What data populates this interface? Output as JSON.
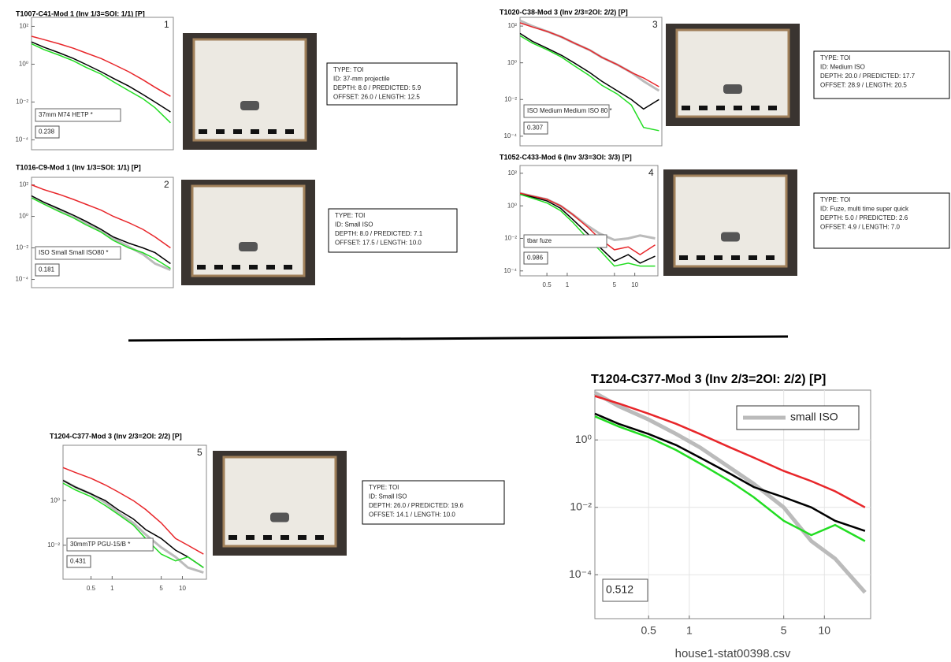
{
  "chart_data": [
    {
      "type": "line",
      "title": "T1007-C41-Mod 1 (Inv 1/3=SOI: 1/1) [P]",
      "panel_label": "1",
      "annotation": "37mm M74 HETP *",
      "score": 0.238,
      "info": [
        "TYPE: TOI",
        "ID: 37-mm projectile",
        "DEPTH: 8.0  /  PREDICTED: 5.9",
        "OFFSET: 26.0  /  LENGTH: 12.5"
      ],
      "log_x": true,
      "log_y": true,
      "xlim": [
        0.2,
        22
      ],
      "ylim": [
        3e-05,
        300
      ],
      "yticks": [
        {
          "value": 100,
          "label": "10²"
        },
        {
          "value": 1,
          "label": "10⁰"
        },
        {
          "value": 0.01,
          "label": "10⁻²"
        },
        {
          "value": 0.0001,
          "label": "10⁻⁴"
        }
      ],
      "x": [
        0.2,
        0.3,
        0.5,
        0.8,
        1.2,
        2,
        3,
        5,
        8,
        12,
        20
      ],
      "series": [
        {
          "color": "#e8262a",
          "values": [
            30,
            20,
            12,
            7,
            4,
            2,
            1,
            0.4,
            0.15,
            0.06,
            0.02
          ]
        },
        {
          "color": "#000000",
          "values": [
            15,
            8,
            4,
            2,
            1,
            0.4,
            0.18,
            0.07,
            0.025,
            0.01,
            0.003
          ]
        },
        {
          "color": "#22dd22",
          "values": [
            12,
            6,
            3,
            1.5,
            0.7,
            0.3,
            0.12,
            0.04,
            0.015,
            0.005,
            0.0008
          ]
        }
      ]
    },
    {
      "type": "line",
      "title": "T1016-C9-Mod 1 (Inv 1/3=SOI: 1/1) [P]",
      "panel_label": "2",
      "annotation": "ISO Small Small ISO80 *",
      "score": 0.181,
      "info": [
        "TYPE: TOI",
        "ID: Small ISO",
        "DEPTH: 8.0  /  PREDICTED: 7.1",
        "OFFSET: 17.5  /  LENGTH: 10.0"
      ],
      "log_x": true,
      "log_y": true,
      "xlim": [
        0.2,
        22
      ],
      "ylim": [
        3e-05,
        300
      ],
      "yticks": [
        {
          "value": 100,
          "label": "10²"
        },
        {
          "value": 1,
          "label": "10⁰"
        },
        {
          "value": 0.01,
          "label": "10⁻²"
        },
        {
          "value": 0.0001,
          "label": "10⁻⁴"
        }
      ],
      "x": [
        0.2,
        0.3,
        0.5,
        0.8,
        1.2,
        2,
        3,
        5,
        8,
        12,
        20
      ],
      "series": [
        {
          "color": "#bbbbbb",
          "values": [
            18,
            7,
            2.5,
            1,
            0.4,
            0.12,
            0.04,
            0.012,
            0.004,
            0.001,
            0.0004
          ]
        },
        {
          "color": "#e8262a",
          "values": [
            100,
            50,
            25,
            12,
            6,
            2.5,
            1,
            0.4,
            0.15,
            0.05,
            0.01
          ]
        },
        {
          "color": "#000000",
          "values": [
            20,
            8,
            3,
            1.2,
            0.5,
            0.15,
            0.05,
            0.02,
            0.01,
            0.005,
            0.001
          ]
        },
        {
          "color": "#22dd22",
          "values": [
            15,
            6,
            2,
            0.8,
            0.3,
            0.1,
            0.03,
            0.01,
            0.005,
            0.002,
            0.0005
          ]
        }
      ]
    },
    {
      "type": "line",
      "title": "T1020-C38-Mod 3 (Inv 2/3=2OI: 2/2) [P]",
      "panel_label": "3",
      "annotation": "ISO Medium Medium ISO 80 *",
      "score": 0.307,
      "info": [
        "TYPE: TOI",
        "ID: Medium ISO",
        "DEPTH: 20.0  /  PREDICTED: 17.7",
        "OFFSET: 28.9  /  LENGTH: 20.5"
      ],
      "log_x": true,
      "log_y": true,
      "xlim": [
        0.2,
        22
      ],
      "ylim": [
        3e-05,
        300
      ],
      "yticks": [
        {
          "value": 100,
          "label": "10²"
        },
        {
          "value": 1,
          "label": "10⁰"
        },
        {
          "value": 0.01,
          "label": "10⁻²"
        },
        {
          "value": 0.0001,
          "label": "10⁻⁴"
        }
      ],
      "x": [
        0.2,
        0.3,
        0.5,
        0.8,
        1.2,
        2,
        3,
        5,
        8,
        12,
        20
      ],
      "series": [
        {
          "color": "#bbbbbb",
          "values": [
            200,
            100,
            50,
            25,
            12,
            5,
            2,
            0.8,
            0.3,
            0.1,
            0.03
          ]
        },
        {
          "color": "#e8262a",
          "values": [
            150,
            90,
            50,
            25,
            12,
            5,
            2,
            0.8,
            0.3,
            0.15,
            0.05
          ]
        },
        {
          "color": "#000000",
          "values": [
            40,
            15,
            6,
            2.5,
            1,
            0.3,
            0.1,
            0.03,
            0.01,
            0.003,
            0.01
          ]
        },
        {
          "color": "#22dd22",
          "values": [
            30,
            12,
            5,
            2,
            0.7,
            0.2,
            0.06,
            0.02,
            0.005,
            0.0003,
            0.0002
          ]
        }
      ]
    },
    {
      "type": "line",
      "title": "T1052-C433-Mod 6 (Inv 3/3=3OI: 3/3) [P]",
      "panel_label": "4",
      "annotation": "tbar fuze",
      "score": 0.986,
      "info": [
        "TYPE: TOI",
        "ID: Fuze, multi time super quick",
        "DEPTH: 5.0  /  PREDICTED: 2.6",
        "OFFSET: 4.9  /  LENGTH: 7.0"
      ],
      "log_x": true,
      "log_y": true,
      "xlim": [
        0.2,
        22
      ],
      "ylim": [
        5e-05,
        300
      ],
      "xticks": [
        0.5,
        1,
        5,
        10
      ],
      "yticks": [
        {
          "value": 100,
          "label": "10²"
        },
        {
          "value": 1,
          "label": "10⁰"
        },
        {
          "value": 0.01,
          "label": "10⁻²"
        },
        {
          "value": 0.0001,
          "label": "10⁻⁴"
        }
      ],
      "x": [
        0.2,
        0.3,
        0.5,
        0.8,
        1.2,
        2,
        3,
        5,
        8,
        12,
        20
      ],
      "series": [
        {
          "color": "#bbbbbb",
          "values": [
            6,
            4,
            2.5,
            1,
            0.3,
            0.06,
            0.02,
            0.008,
            0.01,
            0.015,
            0.01
          ]
        },
        {
          "color": "#e8262a",
          "values": [
            6,
            4,
            2.5,
            1,
            0.3,
            0.05,
            0.01,
            0.002,
            0.003,
            0.001,
            0.004
          ]
        },
        {
          "color": "#000000",
          "values": [
            5,
            3.5,
            2,
            0.7,
            0.15,
            0.02,
            0.003,
            0.0004,
            0.001,
            0.0003,
            0.0008
          ]
        },
        {
          "color": "#22dd22",
          "values": [
            5,
            3,
            1.5,
            0.5,
            0.1,
            0.01,
            0.002,
            0.0002,
            0.0003,
            0.0002,
            0.0002
          ]
        }
      ]
    },
    {
      "type": "line",
      "title": "T1204-C377-Mod 3 (Inv 2/3=2OI: 2/2) [P]",
      "panel_label": "5",
      "annotation": "30mmTP PGU-15/B *",
      "score": 0.431,
      "info": [
        "TYPE: TOI",
        "ID: Small ISO",
        "DEPTH: 26.0  /  PREDICTED: 19.6",
        "OFFSET: 14.1  /  LENGTH: 10.0"
      ],
      "log_x": true,
      "log_y": true,
      "xlim": [
        0.2,
        22
      ],
      "ylim": [
        0.0003,
        300
      ],
      "xticks": [
        0.5,
        1,
        5,
        10
      ],
      "yticks": [
        {
          "value": 1,
          "label": "10⁰"
        },
        {
          "value": 0.01,
          "label": "10⁻²"
        }
      ],
      "x": [
        0.2,
        0.3,
        0.5,
        0.8,
        1.2,
        2,
        3,
        5,
        8,
        12,
        20
      ],
      "series": [
        {
          "color": "#bbbbbb",
          "values": [
            8,
            4,
            2,
            0.8,
            0.3,
            0.1,
            0.03,
            0.008,
            0.003,
            0.001,
            0.0006
          ]
        },
        {
          "color": "#e8262a",
          "values": [
            30,
            18,
            10,
            5,
            2.5,
            1,
            0.4,
            0.1,
            0.02,
            0.01,
            0.004
          ]
        },
        {
          "color": "#000000",
          "values": [
            8,
            4,
            2,
            1,
            0.4,
            0.15,
            0.05,
            0.02,
            0.006,
            0.003,
            0.001
          ]
        },
        {
          "color": "#22dd22",
          "values": [
            6,
            3,
            1.5,
            0.6,
            0.25,
            0.08,
            0.02,
            0.004,
            0.002,
            0.003,
            0.001
          ]
        }
      ]
    },
    {
      "type": "line",
      "title": "T1204-C377-Mod 3 (Inv 2/3=2OI: 2/2) [P]",
      "score": 0.512,
      "xlabel": "house1-stat00398.csv",
      "log_x": true,
      "log_y": true,
      "xlim": [
        0.2,
        22
      ],
      "ylim": [
        5e-06,
        30
      ],
      "grid": true,
      "xticks": [
        0.5,
        1,
        5,
        10
      ],
      "yticks": [
        {
          "value": 1,
          "label": "10⁰"
        },
        {
          "value": 0.01,
          "label": "10⁻²"
        },
        {
          "value": 0.0001,
          "label": "10⁻⁴"
        }
      ],
      "x": [
        0.2,
        0.3,
        0.5,
        0.8,
        1.2,
        2,
        3,
        5,
        8,
        12,
        20
      ],
      "series": [
        {
          "name": "small ISO",
          "color": "#bbbbbb",
          "values": [
            25,
            10,
            4,
            1.5,
            0.6,
            0.15,
            0.05,
            0.01,
            0.001,
            0.0003,
            3e-05
          ]
        },
        {
          "color": "#e8262a",
          "values": [
            20,
            12,
            6,
            3,
            1.5,
            0.6,
            0.3,
            0.12,
            0.06,
            0.03,
            0.01
          ]
        },
        {
          "color": "#000000",
          "values": [
            6,
            3,
            1.5,
            0.7,
            0.3,
            0.1,
            0.04,
            0.02,
            0.01,
            0.004,
            0.002
          ]
        },
        {
          "color": "#22dd22",
          "values": [
            5,
            2.5,
            1.2,
            0.5,
            0.2,
            0.06,
            0.02,
            0.004,
            0.0015,
            0.003,
            0.001
          ]
        }
      ]
    }
  ]
}
